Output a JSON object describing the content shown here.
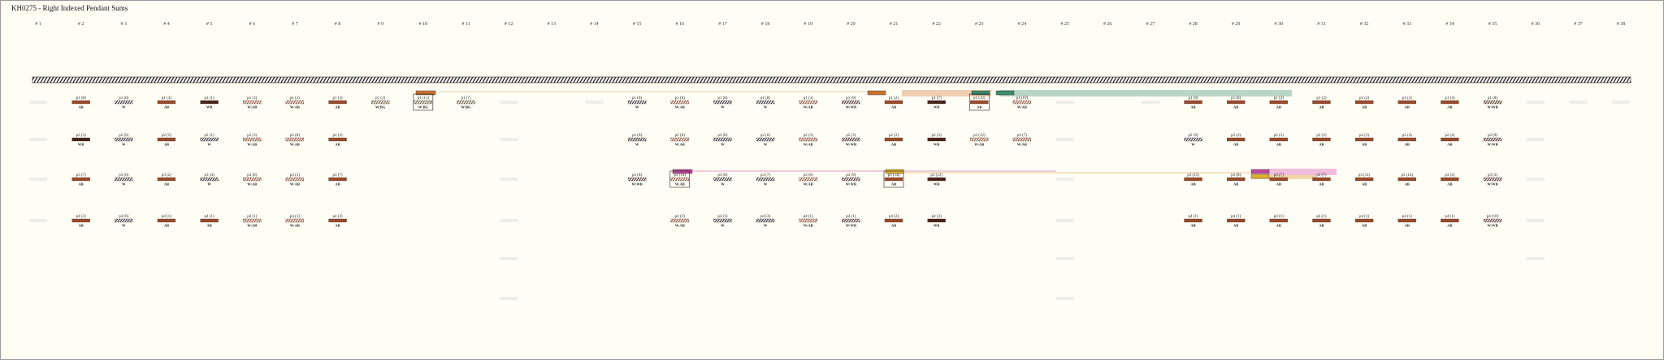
{
  "header": {
    "title": "KH0275 - Right Indexed Pendant Sums"
  },
  "palette": {
    "AB": [
      "#9a4b2c"
    ],
    "WB": [
      "#4a2419"
    ],
    "W": [
      "#ffffff",
      "#2b2b2b"
    ],
    "W:AB": [
      "#ffffff",
      "#9a4b2c"
    ],
    "W:WB": [
      "#ffffff",
      "#4a2419"
    ],
    "W:BG": [
      "#ffffff",
      "#6b5a3a"
    ]
  },
  "columns": [
    {
      "label": "# 1",
      "cords": [
        {
          "faint": true
        },
        {
          "faint": true
        },
        {
          "faint": true
        },
        {
          "faint": true
        }
      ]
    },
    {
      "label": "# 2",
      "cords": [
        {
          "label": "p1 (8)",
          "code": "AB"
        },
        {
          "label": "p2 (3)",
          "code": "WB"
        },
        {
          "label": "p3 (7)",
          "code": "AB"
        },
        {
          "label": "p4 (3)",
          "code": "AB"
        }
      ]
    },
    {
      "label": "# 3",
      "cords": [
        {
          "label": "p1 (8)",
          "code": "W"
        },
        {
          "label": "p2 (6)",
          "code": "W"
        },
        {
          "label": "p3 (6)",
          "code": "W"
        },
        {
          "label": "p4 (6)",
          "code": "W"
        }
      ]
    },
    {
      "label": "# 4",
      "cords": [
        {
          "label": "p1 (3)",
          "code": "AB"
        },
        {
          "label": "p2 (2)",
          "code": "AB"
        },
        {
          "label": "p3 (2)",
          "code": "AB"
        },
        {
          "label": "p4 (1)",
          "code": "AB"
        }
      ]
    },
    {
      "label": "# 5",
      "cords": [
        {
          "label": "p1 (1)",
          "code": "WB"
        },
        {
          "label": "p2 (1)",
          "code": "W"
        },
        {
          "label": "p3 (4)",
          "code": "W"
        },
        {
          "label": "p4 (1)",
          "code": "AB"
        }
      ]
    },
    {
      "label": "# 6",
      "cords": [
        {
          "label": "p1 (3)",
          "code": "W:AB"
        },
        {
          "label": "p2 (3)",
          "code": "W:AB"
        },
        {
          "label": "p3 (8)",
          "code": "W:AB"
        },
        {
          "label": "p4 (1)",
          "code": "W:AB"
        }
      ]
    },
    {
      "label": "# 7",
      "cords": [
        {
          "label": "p1 (2)",
          "code": "W:AB"
        },
        {
          "label": "p2 (8)",
          "code": "W:AB"
        },
        {
          "label": "p3 (3)",
          "code": "W:AB"
        },
        {
          "label": "p4 (1)",
          "code": "W:AB"
        }
      ]
    },
    {
      "label": "# 8",
      "cords": [
        {
          "label": "p1 (3)",
          "code": "AB"
        },
        {
          "label": "p2 (3)",
          "code": "AB"
        },
        {
          "label": "p3 (7)",
          "code": "AB"
        },
        {
          "label": "p4 (3)",
          "code": "AB"
        }
      ]
    },
    {
      "label": "# 9",
      "cords": [
        {
          "label": "p1 (1)",
          "code": "W:BG"
        }
      ]
    },
    {
      "label": "# 10",
      "cords": [
        {
          "label": "p1 (11)",
          "code": "W:BG",
          "boxed": true
        }
      ]
    },
    {
      "label": "# 11",
      "cords": [
        {
          "label": "p1 (7)",
          "code": "W:BG"
        }
      ]
    },
    {
      "label": "# 12",
      "cords": [
        {
          "faint": true
        },
        {
          "faint": true
        },
        {
          "faint": true
        },
        {
          "faint": true
        },
        {
          "faint": true
        },
        {
          "faint": true
        }
      ]
    },
    {
      "label": "# 13",
      "cords": []
    },
    {
      "label": "# 14",
      "cords": [
        {
          "faint": true
        }
      ]
    },
    {
      "label": "# 15",
      "cords": [
        {
          "label": "p1 (8)",
          "code": "W"
        },
        {
          "label": "p2 (8)",
          "code": "W"
        },
        {
          "label": "p3 (8)",
          "code": "W:WB"
        }
      ]
    },
    {
      "label": "# 16",
      "cords": [
        {
          "label": "p1 (8)",
          "code": "W:AB"
        },
        {
          "label": "p2 (8)",
          "code": "W:AB"
        },
        {
          "label": "p3 (14)",
          "code": "W:AB",
          "boxed": true
        },
        {
          "label": "p4 (3)",
          "code": "W:AB"
        }
      ]
    },
    {
      "label": "# 17",
      "cords": [
        {
          "label": "p1 (8)",
          "code": "W"
        },
        {
          "label": "p2 (8)",
          "code": "W"
        },
        {
          "label": "p3 (8)",
          "code": "W"
        },
        {
          "label": "p4 (3)",
          "code": "W"
        }
      ]
    },
    {
      "label": "# 18",
      "cords": [
        {
          "label": "p1 (8)",
          "code": "W"
        },
        {
          "label": "p2 (6)",
          "code": "W"
        },
        {
          "label": "p3 (7)",
          "code": "W"
        },
        {
          "label": "p4 (3)",
          "code": "W"
        }
      ]
    },
    {
      "label": "# 19",
      "cords": [
        {
          "label": "p1 (3)",
          "code": "W:AB"
        },
        {
          "label": "p2 (3)",
          "code": "W:AB"
        },
        {
          "label": "p3 (6)",
          "code": "W:AB"
        },
        {
          "label": "p4 (1)",
          "code": "W:AB"
        }
      ]
    },
    {
      "label": "# 20",
      "cords": [
        {
          "label": "p1 (9)",
          "code": "W:WB"
        },
        {
          "label": "p2 (3)",
          "code": "W:WB"
        },
        {
          "label": "p3 (9)",
          "code": "W:WB"
        },
        {
          "label": "p4 (1)",
          "code": "W:WB"
        }
      ]
    },
    {
      "label": "# 21",
      "cords": [
        {
          "label": "p1 (2)",
          "code": "AB"
        },
        {
          "label": "p2 (2)",
          "code": "AB"
        },
        {
          "label": "p3 (14)",
          "code": "AB",
          "boxed": true
        },
        {
          "label": "p4 (2)",
          "code": "AB"
        }
      ]
    },
    {
      "label": "# 22",
      "cords": [
        {
          "label": "p1 (7)",
          "code": "WB"
        },
        {
          "label": "p2 (3)",
          "code": "WB"
        },
        {
          "label": "p3 (12)",
          "code": "WB"
        },
        {
          "label": "p4 (3)",
          "code": "WB"
        }
      ]
    },
    {
      "label": "# 23",
      "cords": [
        {
          "label": "p1 (12)",
          "code": "AB",
          "boxed": true
        },
        {
          "label": "p2 (12)",
          "code": "W:AB"
        }
      ]
    },
    {
      "label": "# 24",
      "cords": [
        {
          "label": "p1 (19)",
          "code": "W:AB"
        },
        {
          "label": "p2 (7)",
          "code": "W:AB"
        }
      ]
    },
    {
      "label": "# 25",
      "cords": [
        {
          "faint": true
        },
        {
          "faint": true
        },
        {
          "faint": true
        },
        {
          "faint": true
        },
        {
          "faint": true
        },
        {
          "faint": true
        }
      ]
    },
    {
      "label": "# 26",
      "cords": []
    },
    {
      "label": "# 27",
      "cords": [
        {
          "faint": true
        }
      ]
    },
    {
      "label": "# 28",
      "cords": [
        {
          "label": "p1 (9)",
          "code": "AB"
        },
        {
          "label": "p2 (9)",
          "code": "W"
        },
        {
          "label": "p3 (13)",
          "code": "AB"
        },
        {
          "label": "p4 (1)",
          "code": "AB"
        }
      ]
    },
    {
      "label": "# 29",
      "cords": [
        {
          "label": "p1 (8)",
          "code": "AB"
        },
        {
          "label": "p2 (2)",
          "code": "AB"
        },
        {
          "label": "p3 (8)",
          "code": "AB"
        },
        {
          "label": "p4 (1)",
          "code": "AB"
        }
      ]
    },
    {
      "label": "# 30",
      "cords": [
        {
          "label": "p1 (2)",
          "code": "AB"
        },
        {
          "label": "p2 (2)",
          "code": "AB"
        },
        {
          "label": "p3 (7)",
          "code": "AB"
        },
        {
          "label": "p4 (1)",
          "code": "AB"
        }
      ]
    },
    {
      "label": "# 31",
      "cords": [
        {
          "label": "p1 (2)",
          "code": "AB"
        },
        {
          "label": "p2 (2)",
          "code": "AB"
        },
        {
          "label": "p3 (7)",
          "code": "AB"
        },
        {
          "label": "p4 (1)",
          "code": "AB"
        }
      ]
    },
    {
      "label": "# 32",
      "cords": [
        {
          "label": "p1 (2)",
          "code": "AB"
        },
        {
          "label": "p2 (3)",
          "code": "AB"
        },
        {
          "label": "p3 (11)",
          "code": "AB"
        },
        {
          "label": "p4 (1)",
          "code": "AB"
        }
      ]
    },
    {
      "label": "# 33",
      "cords": [
        {
          "label": "p1 (3)",
          "code": "AB"
        },
        {
          "label": "p2 (4)",
          "code": "AB"
        },
        {
          "label": "p3 (14)",
          "code": "AB"
        },
        {
          "label": "p4 (1)",
          "code": "AB"
        }
      ]
    },
    {
      "label": "# 34",
      "cords": [
        {
          "label": "p1 (3)",
          "code": "AB"
        },
        {
          "label": "p2 (4)",
          "code": "AB"
        },
        {
          "label": "p3 (2)",
          "code": "AB"
        },
        {
          "label": "p4 (1)",
          "code": "AB"
        }
      ]
    },
    {
      "label": "# 35",
      "cords": [
        {
          "label": "p1 (8)",
          "code": "W:WB"
        },
        {
          "label": "p2 (9)",
          "code": "W:WB"
        },
        {
          "label": "p3 (3)",
          "code": "W:WB"
        },
        {
          "label": "p4 (10)",
          "code": "W:WB"
        }
      ]
    },
    {
      "label": "# 36",
      "cords": [
        {
          "faint": true
        },
        {
          "faint": true
        },
        {
          "faint": true
        },
        {
          "faint": true
        },
        {
          "faint": true
        }
      ]
    },
    {
      "label": "# 37",
      "cords": [
        {
          "faint": true
        }
      ]
    },
    {
      "label": "# 38",
      "cords": [
        {
          "faint": true
        }
      ]
    }
  ]
}
